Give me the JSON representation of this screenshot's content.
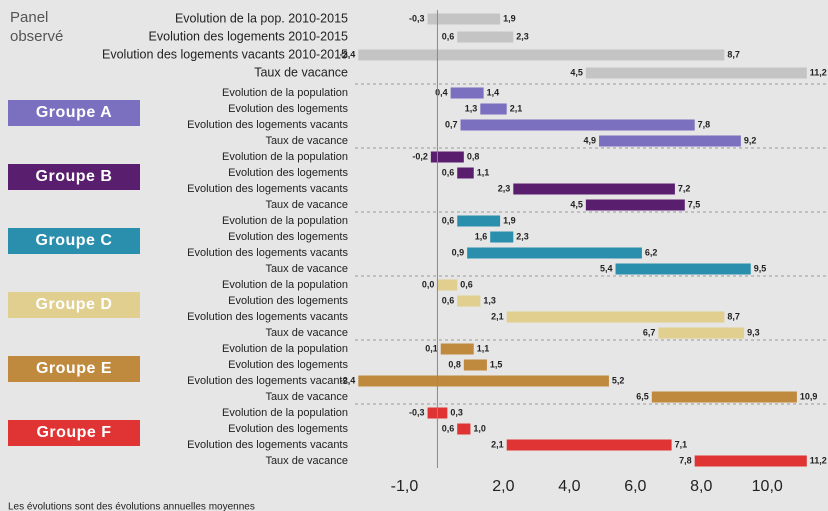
{
  "chart_data": {
    "type": "range_bar",
    "xlim": [
      -2.5,
      11.6
    ],
    "xticks": [
      {
        "value": -1,
        "label": "-1,0"
      },
      {
        "value": 2,
        "label": "2,0"
      },
      {
        "value": 4,
        "label": "4,0"
      },
      {
        "value": 6,
        "label": "6,0"
      },
      {
        "value": 8,
        "label": "8,0"
      },
      {
        "value": 10,
        "label": "10,0"
      }
    ],
    "note": "Les évolutions sont des évolutions annuelles moyennes",
    "groups": [
      {
        "name": "Panel observé",
        "color": "#c4c4c4",
        "label_box": false,
        "rows": [
          {
            "label": "Evolution de la pop. 2010-2015",
            "values": [
              -0.3,
              1.9
            ],
            "value_labels": [
              "-0,3",
              "1,9"
            ]
          },
          {
            "label": "Evolution des logements  2010-2015",
            "values": [
              0.6,
              2.3
            ],
            "value_labels": [
              "0,6",
              "2,3"
            ]
          },
          {
            "label": "Evolution des logements vacants 2010-2015",
            "values": [
              -2.4,
              8.7
            ],
            "value_labels": [
              "-2,4",
              "8,7"
            ]
          },
          {
            "label": "Taux de vacance",
            "values": [
              4.5,
              11.2
            ],
            "value_labels": [
              "4,5",
              "11,2"
            ]
          }
        ]
      },
      {
        "name": "Groupe A",
        "color": "#7b6fc0",
        "label_box": true,
        "rows": [
          {
            "label": "Evolution de la population",
            "values": [
              0.4,
              1.4
            ],
            "value_labels": [
              "0,4",
              "1,4"
            ]
          },
          {
            "label": "Evolution des logements",
            "values": [
              1.3,
              2.1
            ],
            "value_labels": [
              "1,3",
              "2,1"
            ]
          },
          {
            "label": "Evolution des logements vacants",
            "values": [
              0.7,
              7.8
            ],
            "value_labels": [
              "0,7",
              "7,8"
            ]
          },
          {
            "label": "Taux de vacance",
            "values": [
              4.9,
              9.2
            ],
            "value_labels": [
              "4,9",
              "9,2"
            ]
          }
        ]
      },
      {
        "name": "Groupe B",
        "color": "#5a1e6e",
        "label_box": true,
        "rows": [
          {
            "label": "Evolution de la population",
            "values": [
              -0.2,
              0.8
            ],
            "value_labels": [
              "-0,2",
              "0,8"
            ]
          },
          {
            "label": "Evolution des logements",
            "values": [
              0.6,
              1.1
            ],
            "value_labels": [
              "0,6",
              "1,1"
            ]
          },
          {
            "label": "Evolution des logements vacants",
            "values": [
              2.3,
              7.2
            ],
            "value_labels": [
              "2,3",
              "7,2"
            ]
          },
          {
            "label": "Taux de vacance",
            "values": [
              4.5,
              7.5
            ],
            "value_labels": [
              "4,5",
              "7,5"
            ]
          }
        ]
      },
      {
        "name": "Groupe C",
        "color": "#2a8fad",
        "label_box": true,
        "rows": [
          {
            "label": "Evolution de la population",
            "values": [
              0.6,
              1.9
            ],
            "value_labels": [
              "0,6",
              "1,9"
            ]
          },
          {
            "label": "Evolution des logements",
            "values": [
              1.6,
              2.3
            ],
            "value_labels": [
              "1,6",
              "2,3"
            ]
          },
          {
            "label": "Evolution des logements vacants",
            "values": [
              0.9,
              6.2
            ],
            "value_labels": [
              "0,9",
              "6,2"
            ]
          },
          {
            "label": "Taux de vacance",
            "values": [
              5.4,
              9.5
            ],
            "value_labels": [
              "5,4",
              "9,5"
            ]
          }
        ]
      },
      {
        "name": "Groupe D",
        "color": "#e0cf8e",
        "label_box": true,
        "rows": [
          {
            "label": "Evolution de la population",
            "values": [
              0.0,
              0.6
            ],
            "value_labels": [
              "0,0",
              "0,6"
            ]
          },
          {
            "label": "Evolution des logements",
            "values": [
              0.6,
              1.3
            ],
            "value_labels": [
              "0,6",
              "1,3"
            ]
          },
          {
            "label": "Evolution des logements vacants",
            "values": [
              2.1,
              8.7
            ],
            "value_labels": [
              "2,1",
              "8,7"
            ]
          },
          {
            "label": "Taux de vacance",
            "values": [
              6.7,
              9.3
            ],
            "value_labels": [
              "6,7",
              "9,3"
            ]
          }
        ]
      },
      {
        "name": "Groupe E",
        "color": "#c08a3e",
        "label_box": true,
        "rows": [
          {
            "label": "Evolution de la population",
            "values": [
              0.1,
              1.1
            ],
            "value_labels": [
              "0,1",
              "1,1"
            ]
          },
          {
            "label": "Evolution des logements",
            "values": [
              0.8,
              1.5
            ],
            "value_labels": [
              "0,8",
              "1,5"
            ]
          },
          {
            "label": "Evolution des logements vacants",
            "values": [
              -2.4,
              5.2
            ],
            "value_labels": [
              "-2,4",
              "5,2"
            ]
          },
          {
            "label": "Taux de vacance",
            "values": [
              6.5,
              10.9
            ],
            "value_labels": [
              "6,5",
              "10,9"
            ]
          }
        ]
      },
      {
        "name": "Groupe F",
        "color": "#e03333",
        "label_box": true,
        "rows": [
          {
            "label": "Evolution de la population",
            "values": [
              -0.3,
              0.3
            ],
            "value_labels": [
              "-0,3",
              "0,3"
            ]
          },
          {
            "label": "Evolution des logements",
            "values": [
              0.6,
              1.0
            ],
            "value_labels": [
              "0,6",
              "1,0"
            ]
          },
          {
            "label": "Evolution des logements vacants",
            "values": [
              2.1,
              7.1
            ],
            "value_labels": [
              "2,1",
              "7,1"
            ]
          },
          {
            "label": "Taux de vacance",
            "values": [
              7.8,
              11.2
            ],
            "value_labels": [
              "7,8",
              "11,2"
            ]
          }
        ]
      }
    ]
  }
}
